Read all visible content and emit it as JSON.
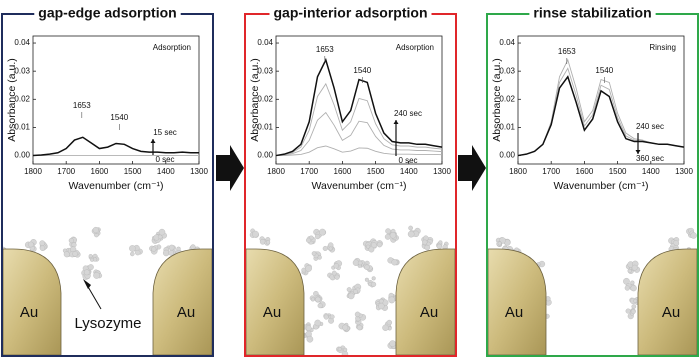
{
  "chart_data": [
    {
      "type": "line",
      "title": "gap-edge adsorption",
      "frame_color": "#1f2d5c",
      "condition": "Adsorption",
      "ylabel": "Absorbance (a.u.)",
      "xlabel": "Wavenumber (cm⁻¹)",
      "xlim": [
        1800,
        1300
      ],
      "ylim": [
        -0.003,
        0.0425
      ],
      "xticks": [
        1800,
        1700,
        1600,
        1500,
        1400,
        1300
      ],
      "yticks": [
        {
          "value": 0,
          "label": "0.00"
        },
        {
          "value": 0.01,
          "label": "0.01"
        },
        {
          "value": 0.02,
          "label": "0.02"
        },
        {
          "value": 0.03,
          "label": "0.03"
        },
        {
          "value": 0.04,
          "label": "0.04"
        }
      ],
      "peaks": [
        1653,
        1540
      ],
      "x": [
        1800,
        1775,
        1750,
        1725,
        1700,
        1675,
        1650,
        1625,
        1600,
        1575,
        1550,
        1525,
        1500,
        1475,
        1450,
        1425,
        1400,
        1375,
        1350,
        1325,
        1300
      ],
      "series": [
        {
          "name": "0 sec",
          "color": "#b0b0b0",
          "values": [
            0,
            0,
            0,
            0,
            0,
            0,
            0,
            0,
            0,
            0,
            0,
            0,
            0,
            0,
            0,
            0,
            0,
            0,
            0,
            0,
            0
          ]
        },
        {
          "name": "15 sec",
          "color": "#111111",
          "values": [
            0,
            0.0002,
            0.0005,
            0.001,
            0.0025,
            0.0055,
            0.0065,
            0.0045,
            0.0025,
            0.003,
            0.0043,
            0.004,
            0.0025,
            0.0015,
            0.0012,
            0.0012,
            0.001,
            0.001,
            0.0012,
            0.001,
            0.001
          ]
        }
      ]
    },
    {
      "type": "line",
      "title": "gap-interior adsorption",
      "frame_color": "#e0262a",
      "condition": "Adsorption",
      "ylabel": "Absorbance (a.u.)",
      "xlabel": "Wavenumber (cm⁻¹)",
      "xlim": [
        1800,
        1300
      ],
      "ylim": [
        -0.003,
        0.0425
      ],
      "xticks": [
        1800,
        1700,
        1600,
        1500,
        1400,
        1300
      ],
      "yticks": [
        {
          "value": 0,
          "label": "0.00"
        },
        {
          "value": 0.01,
          "label": "0.01"
        },
        {
          "value": 0.02,
          "label": "0.02"
        },
        {
          "value": 0.03,
          "label": "0.03"
        },
        {
          "value": 0.04,
          "label": "0.04"
        }
      ],
      "peaks": [
        1653,
        1540
      ],
      "x": [
        1800,
        1775,
        1750,
        1725,
        1700,
        1675,
        1650,
        1625,
        1600,
        1575,
        1550,
        1525,
        1500,
        1475,
        1450,
        1425,
        1400,
        1375,
        1350,
        1325,
        1300
      ],
      "series": [
        {
          "name": "0 sec",
          "color": "#b0b0b0",
          "values": [
            0,
            0,
            0.0002,
            0.0004,
            0.0012,
            0.0028,
            0.0034,
            0.0024,
            0.0012,
            0.0016,
            0.0027,
            0.0026,
            0.0015,
            0.0008,
            0.0005,
            0.0005,
            0.0005,
            0.0004,
            0.0004,
            0.0004,
            0.0003
          ]
        },
        {
          "color": "#b0b0b0",
          "values": [
            0,
            0.0002,
            0.0007,
            0.0018,
            0.0054,
            0.0126,
            0.0153,
            0.0108,
            0.0054,
            0.0072,
            0.0122,
            0.0117,
            0.0068,
            0.0036,
            0.0023,
            0.002,
            0.002,
            0.0018,
            0.0018,
            0.0016,
            0.0014
          ]
        },
        {
          "color": "#b0b0b0",
          "values": [
            0,
            0.0004,
            0.0011,
            0.003,
            0.009,
            0.021,
            0.0255,
            0.018,
            0.009,
            0.012,
            0.0203,
            0.0195,
            0.0113,
            0.006,
            0.0038,
            0.0034,
            0.0034,
            0.003,
            0.003,
            0.0026,
            0.0023
          ]
        },
        {
          "name": "240 sec",
          "color": "#111111",
          "values": [
            0,
            0.0005,
            0.0015,
            0.004,
            0.012,
            0.028,
            0.034,
            0.024,
            0.012,
            0.016,
            0.027,
            0.026,
            0.015,
            0.008,
            0.005,
            0.0045,
            0.0045,
            0.004,
            0.004,
            0.0035,
            0.003
          ]
        }
      ]
    },
    {
      "type": "line",
      "title": "rinse stabilization",
      "frame_color": "#2ea84a",
      "condition": "Rinsing",
      "ylabel": "Absorbance (a.u.)",
      "xlabel": "Wavenumber (cm⁻¹)",
      "xlim": [
        1800,
        1300
      ],
      "ylim": [
        -0.003,
        0.0425
      ],
      "xticks": [
        1800,
        1700,
        1600,
        1500,
        1400,
        1300
      ],
      "yticks": [
        {
          "value": 0,
          "label": "0.00"
        },
        {
          "value": 0.01,
          "label": "0.01"
        },
        {
          "value": 0.02,
          "label": "0.02"
        },
        {
          "value": 0.03,
          "label": "0.03"
        },
        {
          "value": 0.04,
          "label": "0.04"
        }
      ],
      "peaks": [
        1653,
        1540
      ],
      "x": [
        1800,
        1775,
        1750,
        1725,
        1700,
        1675,
        1650,
        1625,
        1600,
        1575,
        1550,
        1525,
        1500,
        1475,
        1450,
        1425,
        1400,
        1375,
        1350,
        1325,
        1300
      ],
      "series": [
        {
          "name": "240 sec",
          "color": "#b0b0b0",
          "values": [
            0,
            0.0005,
            0.0015,
            0.004,
            0.012,
            0.028,
            0.034,
            0.024,
            0.012,
            0.016,
            0.027,
            0.026,
            0.015,
            0.008,
            0.006,
            0.0055,
            0.0045,
            0.004,
            0.004,
            0.0035,
            0.003
          ]
        },
        {
          "color": "#b0b0b0",
          "values": [
            0,
            0.0005,
            0.0015,
            0.004,
            0.0115,
            0.026,
            0.031,
            0.0215,
            0.0105,
            0.0145,
            0.025,
            0.0235,
            0.0135,
            0.007,
            0.0055,
            0.0052,
            0.0045,
            0.004,
            0.004,
            0.0035,
            0.003
          ]
        },
        {
          "name": "360 sec",
          "color": "#111111",
          "values": [
            0,
            0.0005,
            0.0015,
            0.004,
            0.011,
            0.024,
            0.028,
            0.019,
            0.009,
            0.013,
            0.023,
            0.021,
            0.012,
            0.006,
            0.005,
            0.005,
            0.0045,
            0.004,
            0.004,
            0.0035,
            0.003
          ]
        }
      ]
    }
  ],
  "schematics": [
    {
      "left_label": "Au",
      "right_label": "Au",
      "pointer_label": "Lysozyme"
    },
    {
      "left_label": "Au",
      "right_label": "Au"
    },
    {
      "left_label": "Au",
      "right_label": "Au"
    }
  ]
}
